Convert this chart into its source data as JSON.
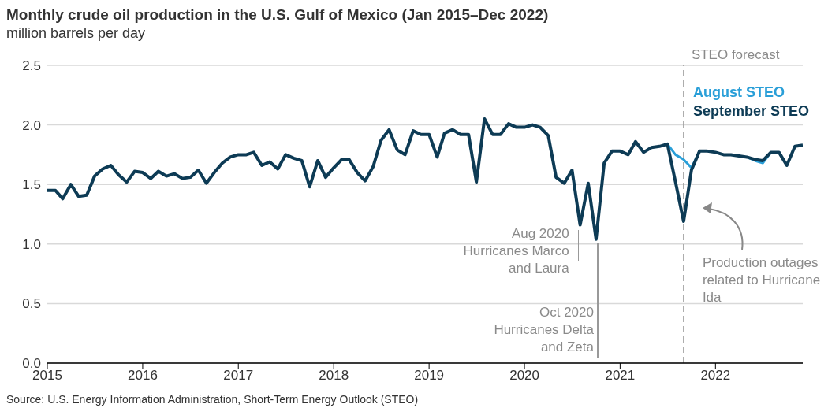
{
  "chart_data": {
    "type": "line",
    "title": "Monthly crude oil production in the U.S. Gulf of Mexico (Jan 2015–Dec 2022)",
    "subtitle": "million barrels per day",
    "x": [
      "2015-01",
      "2015-02",
      "2015-03",
      "2015-04",
      "2015-05",
      "2015-06",
      "2015-07",
      "2015-08",
      "2015-09",
      "2015-10",
      "2015-11",
      "2015-12",
      "2016-01",
      "2016-02",
      "2016-03",
      "2016-04",
      "2016-05",
      "2016-06",
      "2016-07",
      "2016-08",
      "2016-09",
      "2016-10",
      "2016-11",
      "2016-12",
      "2017-01",
      "2017-02",
      "2017-03",
      "2017-04",
      "2017-05",
      "2017-06",
      "2017-07",
      "2017-08",
      "2017-09",
      "2017-10",
      "2017-11",
      "2017-12",
      "2018-01",
      "2018-02",
      "2018-03",
      "2018-04",
      "2018-05",
      "2018-06",
      "2018-07",
      "2018-08",
      "2018-09",
      "2018-10",
      "2018-11",
      "2018-12",
      "2019-01",
      "2019-02",
      "2019-03",
      "2019-04",
      "2019-05",
      "2019-06",
      "2019-07",
      "2019-08",
      "2019-09",
      "2019-10",
      "2019-11",
      "2019-12",
      "2020-01",
      "2020-02",
      "2020-03",
      "2020-04",
      "2020-05",
      "2020-06",
      "2020-07",
      "2020-08",
      "2020-09",
      "2020-10",
      "2020-11",
      "2020-12",
      "2021-01",
      "2021-02",
      "2021-03",
      "2021-04",
      "2021-05",
      "2021-06",
      "2021-07",
      "2021-08",
      "2021-09",
      "2021-10",
      "2021-11",
      "2021-12",
      "2022-01",
      "2022-02",
      "2022-03",
      "2022-04",
      "2022-05",
      "2022-06",
      "2022-07",
      "2022-08",
      "2022-09",
      "2022-10",
      "2022-11",
      "2022-12"
    ],
    "series": [
      {
        "name": "August STEO",
        "color": "#2a9fd8",
        "x": [
          "2021-07",
          "2021-08",
          "2021-09",
          "2021-10",
          "2021-11",
          "2021-12",
          "2022-01",
          "2022-02",
          "2022-03",
          "2022-04",
          "2022-05",
          "2022-06",
          "2022-07",
          "2022-08"
        ],
        "values": [
          1.84,
          1.75,
          1.71,
          1.64,
          1.78,
          null,
          null,
          null,
          null,
          null,
          1.73,
          1.7,
          1.68,
          1.77
        ]
      },
      {
        "name": "September STEO",
        "color": "#0d3b55",
        "values": [
          1.45,
          1.45,
          1.38,
          1.5,
          1.4,
          1.41,
          1.57,
          1.63,
          1.66,
          1.58,
          1.52,
          1.61,
          1.6,
          1.55,
          1.61,
          1.57,
          1.59,
          1.55,
          1.56,
          1.62,
          1.51,
          1.6,
          1.68,
          1.73,
          1.75,
          1.75,
          1.77,
          1.66,
          1.69,
          1.63,
          1.75,
          1.72,
          1.7,
          1.48,
          1.7,
          1.56,
          1.64,
          1.71,
          1.71,
          1.6,
          1.53,
          1.65,
          1.87,
          1.96,
          1.79,
          1.75,
          1.95,
          1.92,
          1.92,
          1.73,
          1.93,
          1.96,
          1.92,
          1.92,
          1.52,
          2.05,
          1.92,
          1.92,
          2.01,
          1.98,
          1.98,
          2.0,
          1.98,
          1.91,
          1.56,
          1.51,
          1.62,
          1.16,
          1.51,
          1.04,
          1.68,
          1.78,
          1.78,
          1.75,
          1.86,
          1.77,
          1.81,
          1.82,
          1.84,
          1.52,
          1.19,
          1.62,
          1.78,
          1.78,
          1.77,
          1.75,
          1.75,
          1.74,
          1.73,
          1.71,
          1.7,
          1.77,
          1.77,
          1.66,
          1.82,
          1.83
        ]
      }
    ],
    "xlim": [
      "2015-01",
      "2022-12"
    ],
    "xticks": [
      "2015",
      "2016",
      "2017",
      "2018",
      "2019",
      "2020",
      "2021",
      "2022"
    ],
    "ylim": [
      0,
      2.5
    ],
    "yticks": [
      {
        "value": 0,
        "label": "0.0"
      },
      {
        "value": 0.5,
        "label": "0.5"
      },
      {
        "value": 1,
        "label": "1.0"
      },
      {
        "value": 1.5,
        "label": "1.5"
      },
      {
        "value": 2,
        "label": "2.0"
      },
      {
        "value": 2.5,
        "label": "2.5"
      }
    ],
    "grid": "y",
    "legend": "top right",
    "ref_lines": [
      {
        "axis": "x",
        "value": "2021-09",
        "label": "STEO forecast",
        "color": "#a0a0a0",
        "line_style": "dashed"
      }
    ],
    "annotations": [
      {
        "text": "Aug 2020\nHurricanes Marco\nand Laura",
        "x": "2020-08",
        "y": 1.16
      },
      "Oct 2020\nHurricanes Delta\nand Zeta",
      {
        "text": "Production outages\nrelated to Hurricane\nIda",
        "x": "2021-09",
        "y": 1.19
      },
      "Source: U.S. Energy Information Administration, Short-Term Energy Outlook (STEO)"
    ]
  }
}
